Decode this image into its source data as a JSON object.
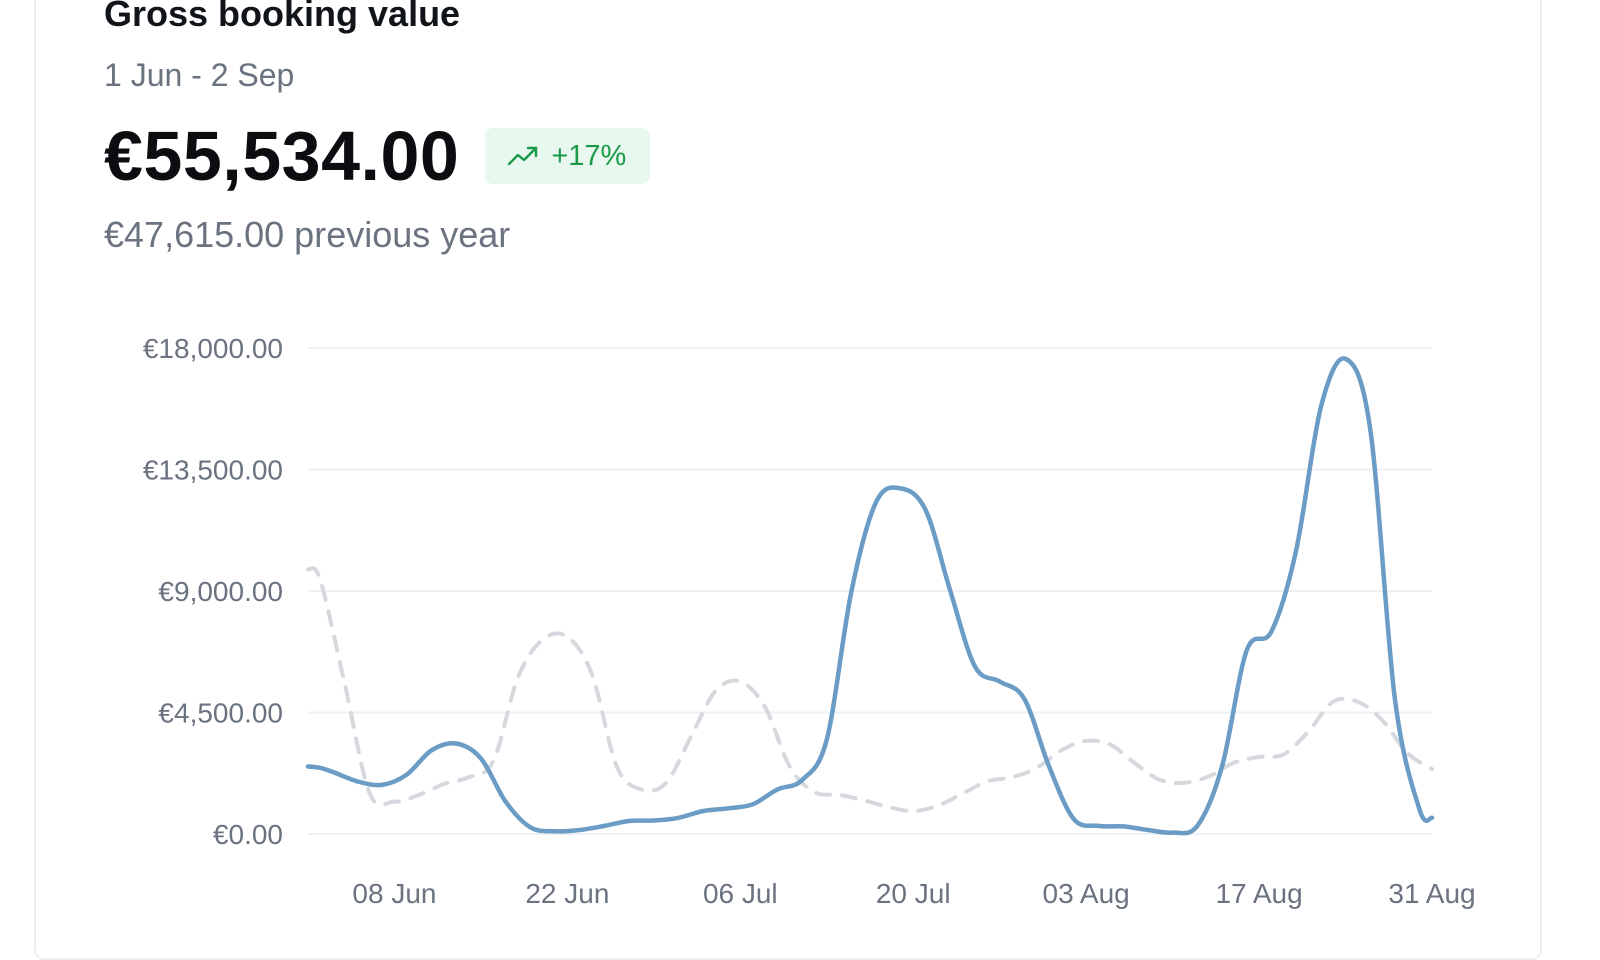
{
  "card": {
    "title": "Gross booking value",
    "date_range": "1 Jun - 2 Sep",
    "total_value": "€55,534.00",
    "change": {
      "text": "+17%",
      "icon": "trending-up-icon",
      "color": "#1a9a47",
      "background": "#e9f8ee"
    },
    "previous_value_text": "€47,615.00 previous year"
  },
  "chart_data": {
    "type": "line",
    "ylim": [
      0,
      18000
    ],
    "y_ticks": [
      0,
      4500,
      9000,
      13500,
      18000
    ],
    "y_tick_labels": [
      "€0.00",
      "€4,500.00",
      "€9,000.00",
      "€13,500.00",
      "€18,000.00"
    ],
    "x_ticks": [
      "2024-06-08",
      "2024-06-22",
      "2024-07-06",
      "2024-07-20",
      "2024-08-03",
      "2024-08-17",
      "2024-08-31"
    ],
    "x_tick_labels": [
      "08 Jun",
      "22 Jun",
      "06 Jul",
      "20 Jul",
      "03 Aug",
      "17 Aug",
      "31 Aug"
    ],
    "grid": true,
    "series": [
      {
        "style": "solid",
        "color": "#6a9cc5",
        "points": [
          [
            "2024-06-01",
            2500
          ],
          [
            "2024-06-02",
            2450
          ],
          [
            "2024-06-03",
            2300
          ],
          [
            "2024-06-05",
            1950
          ],
          [
            "2024-06-07",
            1820
          ],
          [
            "2024-06-09",
            2200
          ],
          [
            "2024-06-11",
            3100
          ],
          [
            "2024-06-13",
            3350
          ],
          [
            "2024-06-15",
            2800
          ],
          [
            "2024-06-17",
            1200
          ],
          [
            "2024-06-19",
            250
          ],
          [
            "2024-06-21",
            100
          ],
          [
            "2024-06-23",
            150
          ],
          [
            "2024-06-25",
            300
          ],
          [
            "2024-06-27",
            480
          ],
          [
            "2024-06-29",
            500
          ],
          [
            "2024-07-01",
            600
          ],
          [
            "2024-07-03",
            850
          ],
          [
            "2024-07-05",
            950
          ],
          [
            "2024-07-07",
            1100
          ],
          [
            "2024-07-09",
            1650
          ],
          [
            "2024-07-11",
            2000
          ],
          [
            "2024-07-13",
            3500
          ],
          [
            "2024-07-15",
            9000
          ],
          [
            "2024-07-17",
            12300
          ],
          [
            "2024-07-19",
            12800
          ],
          [
            "2024-07-21",
            12000
          ],
          [
            "2024-07-23",
            9000
          ],
          [
            "2024-07-25",
            6200
          ],
          [
            "2024-07-27",
            5650
          ],
          [
            "2024-07-29",
            5000
          ],
          [
            "2024-07-31",
            2500
          ],
          [
            "2024-08-02",
            550
          ],
          [
            "2024-08-04",
            300
          ],
          [
            "2024-08-06",
            280
          ],
          [
            "2024-08-08",
            150
          ],
          [
            "2024-08-10",
            50
          ],
          [
            "2024-08-12",
            300
          ],
          [
            "2024-08-14",
            2500
          ],
          [
            "2024-08-16",
            6800
          ],
          [
            "2024-08-18",
            7500
          ],
          [
            "2024-08-20",
            10500
          ],
          [
            "2024-08-22",
            15800
          ],
          [
            "2024-08-24",
            17600
          ],
          [
            "2024-08-26",
            15000
          ],
          [
            "2024-08-28",
            5000
          ],
          [
            "2024-08-30",
            900
          ],
          [
            "2024-08-31",
            600
          ]
        ]
      },
      {
        "style": "dashed",
        "color": "#d5d8dd",
        "points": [
          [
            "2024-06-01",
            9800
          ],
          [
            "2024-06-02",
            9400
          ],
          [
            "2024-06-04",
            5500
          ],
          [
            "2024-06-06",
            1500
          ],
          [
            "2024-06-08",
            1200
          ],
          [
            "2024-06-10",
            1450
          ],
          [
            "2024-06-12",
            1850
          ],
          [
            "2024-06-14",
            2100
          ],
          [
            "2024-06-16",
            2700
          ],
          [
            "2024-06-18",
            5800
          ],
          [
            "2024-06-20",
            7200
          ],
          [
            "2024-06-22",
            7300
          ],
          [
            "2024-06-24",
            5900
          ],
          [
            "2024-06-26",
            2500
          ],
          [
            "2024-06-28",
            1650
          ],
          [
            "2024-06-30",
            1900
          ],
          [
            "2024-07-02",
            3600
          ],
          [
            "2024-07-04",
            5300
          ],
          [
            "2024-07-06",
            5650
          ],
          [
            "2024-07-08",
            4700
          ],
          [
            "2024-07-10",
            2500
          ],
          [
            "2024-07-12",
            1550
          ],
          [
            "2024-07-14",
            1450
          ],
          [
            "2024-07-16",
            1250
          ],
          [
            "2024-07-18",
            1000
          ],
          [
            "2024-07-20",
            850
          ],
          [
            "2024-07-22",
            1050
          ],
          [
            "2024-07-24",
            1500
          ],
          [
            "2024-07-26",
            1950
          ],
          [
            "2024-07-28",
            2100
          ],
          [
            "2024-07-30",
            2450
          ],
          [
            "2024-08-01",
            3100
          ],
          [
            "2024-08-03",
            3450
          ],
          [
            "2024-08-05",
            3300
          ],
          [
            "2024-08-07",
            2600
          ],
          [
            "2024-08-09",
            2000
          ],
          [
            "2024-08-11",
            1900
          ],
          [
            "2024-08-13",
            2150
          ],
          [
            "2024-08-15",
            2650
          ],
          [
            "2024-08-17",
            2850
          ],
          [
            "2024-08-19",
            2950
          ],
          [
            "2024-08-21",
            3800
          ],
          [
            "2024-08-23",
            4900
          ],
          [
            "2024-08-25",
            4900
          ],
          [
            "2024-08-27",
            4200
          ],
          [
            "2024-08-29",
            3000
          ],
          [
            "2024-08-31",
            2400
          ]
        ]
      }
    ]
  }
}
